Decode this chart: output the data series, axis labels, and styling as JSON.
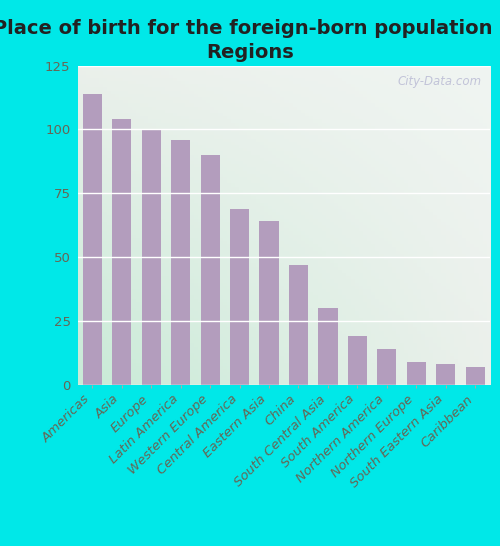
{
  "title": "Place of birth for the foreign-born population -\nRegions",
  "categories": [
    "Americas",
    "Asia",
    "Europe",
    "Latin America",
    "Western Europe",
    "Central America",
    "Eastern Asia",
    "China",
    "South Central Asia",
    "South America",
    "Northern America",
    "Northern Europe",
    "South Eastern Asia",
    "Caribbean"
  ],
  "values": [
    114,
    104,
    100,
    96,
    90,
    69,
    64,
    47,
    30,
    19,
    14,
    9,
    8,
    7
  ],
  "bar_color": "#b39dbd",
  "bg_color_topleft": "#d8ede0",
  "bg_color_topright": "#e8eeee",
  "bg_color_bottomleft": "#c8ecd8",
  "bg_color_bottomright": "#ddeae8",
  "outer_background": "#00e8e8",
  "ylim": [
    0,
    125
  ],
  "yticks": [
    0,
    25,
    50,
    75,
    100,
    125
  ],
  "title_fontsize": 14,
  "tick_fontsize": 9.5,
  "watermark": "City-Data.com"
}
